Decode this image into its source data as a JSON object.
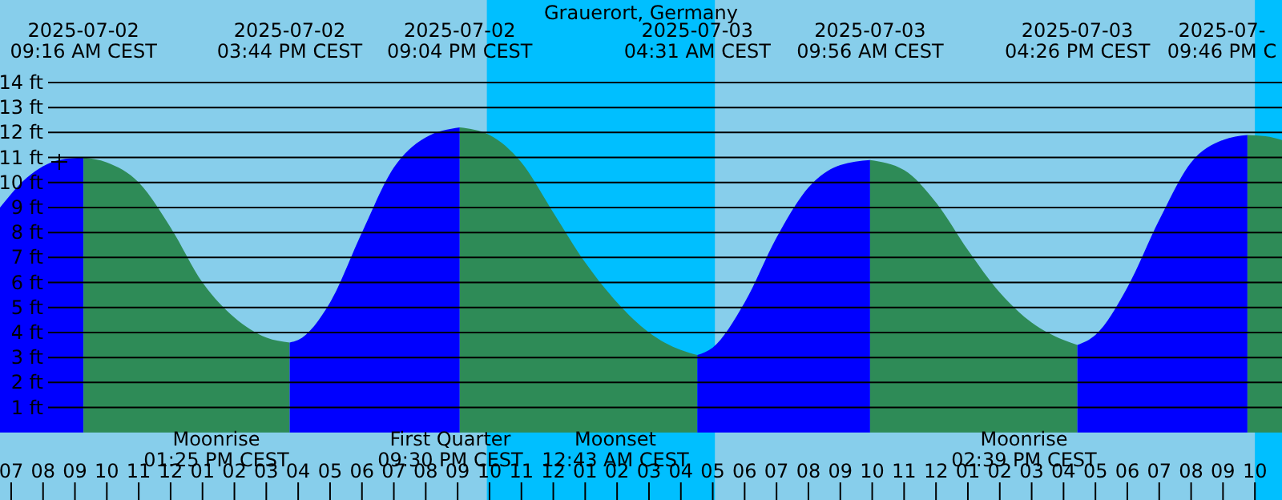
{
  "chart_data": {
    "type": "area",
    "title": "Grauerort, Germany",
    "grid": "y",
    "xlim": [
      "2025-07-02T06:39",
      "2025-07-03T22:51"
    ],
    "ylim": [
      -2.7,
      17.3
    ],
    "yticks": [
      {
        "value": 1,
        "label": "1 ft"
      },
      {
        "value": 2,
        "label": "2 ft"
      },
      {
        "value": 3,
        "label": "3 ft"
      },
      {
        "value": 4,
        "label": "4 ft"
      },
      {
        "value": 5,
        "label": "5 ft"
      },
      {
        "value": 6,
        "label": "6 ft"
      },
      {
        "value": 7,
        "label": "7 ft"
      },
      {
        "value": 8,
        "label": "8 ft"
      },
      {
        "value": 9,
        "label": "9 ft"
      },
      {
        "value": 10,
        "label": "10 ft"
      },
      {
        "value": 11,
        "label": "11 ft"
      },
      {
        "value": 12,
        "label": "12 ft"
      },
      {
        "value": 13,
        "label": "13 ft"
      },
      {
        "value": 14,
        "label": "14 ft"
      }
    ],
    "xticks": [
      {
        "value": "2025-07-02T07:00",
        "label": "07"
      },
      {
        "value": "2025-07-02T08:00",
        "label": "08"
      },
      {
        "value": "2025-07-02T09:00",
        "label": "09"
      },
      {
        "value": "2025-07-02T10:00",
        "label": "10"
      },
      {
        "value": "2025-07-02T11:00",
        "label": "11"
      },
      {
        "value": "2025-07-02T12:00",
        "label": "12"
      },
      {
        "value": "2025-07-02T13:00",
        "label": "01"
      },
      {
        "value": "2025-07-02T14:00",
        "label": "02"
      },
      {
        "value": "2025-07-02T15:00",
        "label": "03"
      },
      {
        "value": "2025-07-02T16:00",
        "label": "04"
      },
      {
        "value": "2025-07-02T17:00",
        "label": "05"
      },
      {
        "value": "2025-07-02T18:00",
        "label": "06"
      },
      {
        "value": "2025-07-02T19:00",
        "label": "07"
      },
      {
        "value": "2025-07-02T20:00",
        "label": "08"
      },
      {
        "value": "2025-07-02T21:00",
        "label": "09"
      },
      {
        "value": "2025-07-02T22:00",
        "label": "10"
      },
      {
        "value": "2025-07-02T23:00",
        "label": "11"
      },
      {
        "value": "2025-07-03T00:00",
        "label": "12"
      },
      {
        "value": "2025-07-03T01:00",
        "label": "01"
      },
      {
        "value": "2025-07-03T02:00",
        "label": "02"
      },
      {
        "value": "2025-07-03T03:00",
        "label": "03"
      },
      {
        "value": "2025-07-03T04:00",
        "label": "04"
      },
      {
        "value": "2025-07-03T05:00",
        "label": "05"
      },
      {
        "value": "2025-07-03T06:00",
        "label": "06"
      },
      {
        "value": "2025-07-03T07:00",
        "label": "07"
      },
      {
        "value": "2025-07-03T08:00",
        "label": "08"
      },
      {
        "value": "2025-07-03T09:00",
        "label": "09"
      },
      {
        "value": "2025-07-03T10:00",
        "label": "10"
      },
      {
        "value": "2025-07-03T11:00",
        "label": "11"
      },
      {
        "value": "2025-07-03T12:00",
        "label": "12"
      },
      {
        "value": "2025-07-03T13:00",
        "label": "01"
      },
      {
        "value": "2025-07-03T14:00",
        "label": "02"
      },
      {
        "value": "2025-07-03T15:00",
        "label": "03"
      },
      {
        "value": "2025-07-03T16:00",
        "label": "04"
      },
      {
        "value": "2025-07-03T17:00",
        "label": "05"
      },
      {
        "value": "2025-07-03T18:00",
        "label": "06"
      },
      {
        "value": "2025-07-03T19:00",
        "label": "07"
      },
      {
        "value": "2025-07-03T20:00",
        "label": "08"
      },
      {
        "value": "2025-07-03T21:00",
        "label": "09"
      },
      {
        "value": "2025-07-03T22:00",
        "label": "10"
      }
    ],
    "bands": [
      {
        "axis": "x",
        "from": "2025-07-02T21:55",
        "to": "2025-07-03T05:04",
        "color": "#00bfff"
      },
      {
        "axis": "x",
        "from": "2025-07-03T22:00",
        "to": "2025-07-03T22:51",
        "color": "#00bfff"
      }
    ],
    "series": [
      {
        "color": "#0000ff",
        "x": [
          "2025-07-02T06:39",
          "2025-07-02T07:30",
          "2025-07-02T08:30",
          "2025-07-02T09:16"
        ],
        "values": [
          9.0,
          10.2,
          10.9,
          11.0
        ]
      },
      {
        "color": "#2e8b57",
        "x": [
          "2025-07-02T09:16",
          "2025-07-02T10:00",
          "2025-07-02T11:00",
          "2025-07-02T12:00",
          "2025-07-02T13:00",
          "2025-07-02T14:00",
          "2025-07-02T15:00",
          "2025-07-02T15:44"
        ],
        "values": [
          11.0,
          10.8,
          10.0,
          8.2,
          6.0,
          4.6,
          3.8,
          3.6
        ]
      },
      {
        "color": "#0000ff",
        "x": [
          "2025-07-02T15:44",
          "2025-07-02T16:00",
          "2025-07-02T17:00",
          "2025-07-02T18:00",
          "2025-07-02T19:00",
          "2025-07-02T20:00",
          "2025-07-02T21:04"
        ],
        "values": [
          3.6,
          3.7,
          5.2,
          8.0,
          10.6,
          11.8,
          12.2
        ]
      },
      {
        "color": "#2e8b57",
        "x": [
          "2025-07-02T21:04",
          "2025-07-02T22:00",
          "2025-07-02T23:00",
          "2025-07-03T00:00",
          "2025-07-03T01:00",
          "2025-07-03T02:00",
          "2025-07-03T03:00",
          "2025-07-03T04:00",
          "2025-07-03T04:31"
        ],
        "values": [
          12.2,
          11.9,
          10.8,
          8.8,
          6.8,
          5.2,
          4.0,
          3.3,
          3.1
        ]
      },
      {
        "color": "#0000ff",
        "x": [
          "2025-07-03T04:31",
          "2025-07-03T05:00",
          "2025-07-03T06:00",
          "2025-07-03T07:00",
          "2025-07-03T08:00",
          "2025-07-03T09:00",
          "2025-07-03T09:56"
        ],
        "values": [
          3.1,
          3.4,
          5.2,
          7.8,
          9.8,
          10.7,
          10.9
        ]
      },
      {
        "color": "#2e8b57",
        "x": [
          "2025-07-03T09:56",
          "2025-07-03T11:00",
          "2025-07-03T12:00",
          "2025-07-03T13:00",
          "2025-07-03T14:00",
          "2025-07-03T15:00",
          "2025-07-03T16:00",
          "2025-07-03T16:26"
        ],
        "values": [
          10.9,
          10.5,
          9.2,
          7.3,
          5.6,
          4.4,
          3.7,
          3.5
        ]
      },
      {
        "color": "#0000ff",
        "x": [
          "2025-07-03T16:26",
          "2025-07-03T17:00",
          "2025-07-03T18:00",
          "2025-07-03T19:00",
          "2025-07-03T20:00",
          "2025-07-03T21:00",
          "2025-07-03T21:46"
        ],
        "values": [
          3.5,
          3.9,
          5.8,
          8.5,
          10.8,
          11.7,
          11.9
        ]
      },
      {
        "color": "#2e8b57",
        "x": [
          "2025-07-03T21:46",
          "2025-07-03T22:20",
          "2025-07-03T22:51"
        ],
        "values": [
          11.9,
          11.85,
          11.7
        ]
      }
    ],
    "annotations": [
      "2025-07-02\n09:16 AM CEST",
      "2025-07-02\n03:44 PM CEST",
      "2025-07-02\n09:04 PM CEST",
      "2025-07-03\n04:31 AM CEST",
      "2025-07-03\n09:56 AM CEST",
      "2025-07-03\n04:26 PM CEST",
      "2025-07-\n09:46 PM C",
      "Moonrise\n01:25 PM CEST",
      "First Quarter\n09:30 PM CEST",
      "Moonset\n12:43 AM CEST",
      "Moonrise\n02:39 PM CEST"
    ]
  }
}
